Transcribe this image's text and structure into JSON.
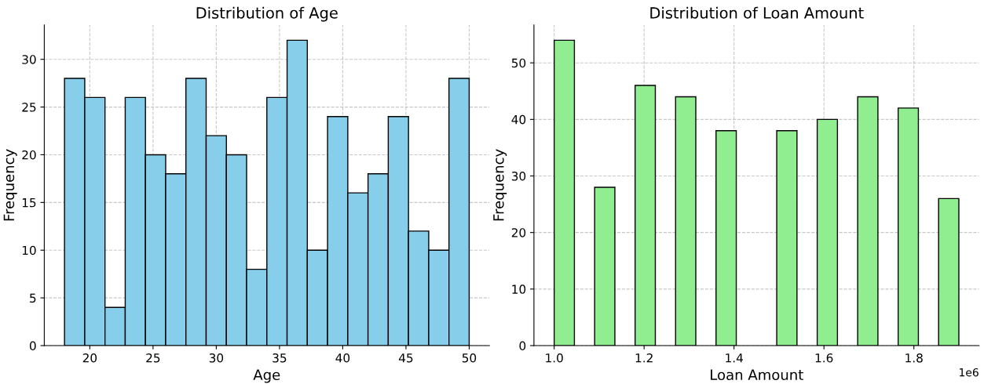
{
  "chart_data": [
    {
      "type": "histogram",
      "title": "Distribution of Age",
      "xlabel": "Age",
      "ylabel": "Frequency",
      "color": "#87ceeb",
      "bins": [
        18,
        19.6,
        21.2,
        22.8,
        24.4,
        26,
        27.6,
        29.2,
        30.8,
        32.4,
        34,
        35.6,
        37.2,
        38.8,
        40.4,
        42,
        43.6,
        45.2,
        46.8,
        48.4,
        50
      ],
      "values": [
        28,
        26,
        4,
        26,
        20,
        18,
        28,
        22,
        20,
        8,
        26,
        32,
        10,
        24,
        16,
        18,
        24,
        12,
        10,
        28
      ],
      "xlim": [
        16.4,
        51.6
      ],
      "ylim": [
        0,
        33.6
      ],
      "xticks": [
        20,
        25,
        30,
        35,
        40,
        45,
        50
      ],
      "yticks": [
        0,
        5,
        10,
        15,
        20,
        25,
        30
      ],
      "grid": true
    },
    {
      "type": "histogram",
      "title": "Distribution of Loan Amount",
      "xlabel": "Loan Amount",
      "ylabel": "Frequency",
      "color": "#90ee90",
      "bins": [
        1.0,
        1.045,
        1.09,
        1.135,
        1.18,
        1.225,
        1.27,
        1.315,
        1.36,
        1.405,
        1.45,
        1.495,
        1.54,
        1.585,
        1.63,
        1.675,
        1.72,
        1.765,
        1.81,
        1.855,
        1.9
      ],
      "values": [
        54,
        0,
        28,
        0,
        46,
        0,
        44,
        0,
        38,
        0,
        0,
        38,
        0,
        40,
        0,
        44,
        0,
        42,
        0,
        26
      ],
      "xlim": [
        0.955,
        1.945
      ],
      "ylim": [
        0,
        56.7
      ],
      "xticks": [
        {
          "value": 1.0,
          "label": "1.0"
        },
        {
          "value": 1.2,
          "label": "1.2"
        },
        {
          "value": 1.4,
          "label": "1.4"
        },
        {
          "value": 1.6,
          "label": "1.6"
        },
        {
          "value": 1.8,
          "label": "1.8"
        }
      ],
      "yticks": [
        0,
        10,
        20,
        30,
        40,
        50
      ],
      "grid": true,
      "annotations": [
        "1e6"
      ]
    }
  ]
}
